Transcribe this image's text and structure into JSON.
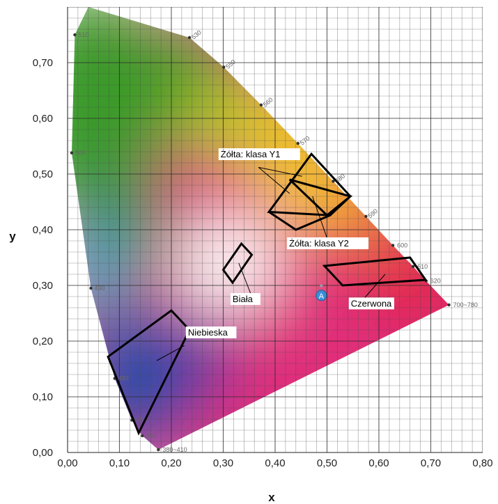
{
  "chart_data": {
    "type": "scatter",
    "xlabel": "x",
    "ylabel": "y",
    "xlim": [
      0,
      0.8
    ],
    "ylim": [
      0,
      0.8
    ],
    "x_ticks": [
      "0,00",
      "0,10",
      "0,20",
      "0,30",
      "0,40",
      "0,50",
      "0,60",
      "0,70",
      "0,80"
    ],
    "y_ticks": [
      "0,00",
      "0,10",
      "0,20",
      "0,30",
      "0,40",
      "0,50",
      "0,60",
      "0,70"
    ],
    "grid": true,
    "spectral_locus": [
      {
        "wl": "380~410",
        "x": 0.175,
        "y": 0.005
      },
      {
        "wl": "460",
        "x": 0.144,
        "y": 0.03
      },
      {
        "wl": "470",
        "x": 0.124,
        "y": 0.058
      },
      {
        "wl": "480",
        "x": 0.091,
        "y": 0.133
      },
      {
        "wl": "490",
        "x": 0.045,
        "y": 0.295
      },
      {
        "wl": "500",
        "x": 0.008,
        "y": 0.538
      },
      {
        "wl": "510",
        "x": 0.014,
        "y": 0.75
      },
      {
        "wl": "",
        "x": 0.04,
        "y": 0.8
      },
      {
        "wl": "530",
        "x": 0.235,
        "y": 0.745
      },
      {
        "wl": "550",
        "x": 0.301,
        "y": 0.692
      },
      {
        "wl": "560",
        "x": 0.373,
        "y": 0.624
      },
      {
        "wl": "570",
        "x": 0.444,
        "y": 0.555
      },
      {
        "wl": "580",
        "x": 0.512,
        "y": 0.487
      },
      {
        "wl": "590",
        "x": 0.575,
        "y": 0.424
      },
      {
        "wl": "600",
        "x": 0.627,
        "y": 0.372
      },
      {
        "wl": "610",
        "x": 0.666,
        "y": 0.334
      },
      {
        "wl": "620",
        "x": 0.691,
        "y": 0.308
      },
      {
        "wl": "700~780",
        "x": 0.735,
        "y": 0.265
      }
    ],
    "regions": [
      {
        "label": "Żółta: klasa Y1",
        "points": [
          [
            0.388,
            0.432
          ],
          [
            0.47,
            0.536
          ],
          [
            0.545,
            0.46
          ],
          [
            0.506,
            0.426
          ]
        ]
      },
      {
        "label": "Żółta: klasa Y1",
        "points": [
          [
            0.388,
            0.432
          ],
          [
            0.44,
            0.4
          ],
          [
            0.506,
            0.426
          ]
        ]
      },
      {
        "label": "Żółta: klasa Y2",
        "points": [
          [
            0.428,
            0.49
          ],
          [
            0.545,
            0.46
          ],
          [
            0.5,
            0.426
          ]
        ]
      },
      {
        "label": "Biała",
        "points": [
          [
            0.3,
            0.328
          ],
          [
            0.335,
            0.375
          ],
          [
            0.355,
            0.355
          ],
          [
            0.318,
            0.305
          ]
        ]
      },
      {
        "label": "Czerwona",
        "points": [
          [
            0.495,
            0.335
          ],
          [
            0.66,
            0.35
          ],
          [
            0.69,
            0.31
          ],
          [
            0.53,
            0.3
          ]
        ]
      },
      {
        "label": "Niebieska",
        "points": [
          [
            0.078,
            0.172
          ],
          [
            0.2,
            0.255
          ],
          [
            0.235,
            0.22
          ],
          [
            0.137,
            0.035
          ]
        ]
      }
    ],
    "annotations": [
      {
        "text": "Żółta: klasa Y1",
        "x": 0.295,
        "y": 0.53
      },
      {
        "text": "Żółta: klasa Y2",
        "x": 0.427,
        "y": 0.37
      },
      {
        "text": "Biała",
        "x": 0.318,
        "y": 0.27
      },
      {
        "text": "Czerwona",
        "x": 0.546,
        "y": 0.262
      },
      {
        "text": "Niebieska",
        "x": 0.232,
        "y": 0.21
      }
    ],
    "marker": {
      "label": "A",
      "x": 0.489,
      "y": 0.282,
      "color": "#3a8fd8"
    }
  },
  "colors": {
    "green": "#3a9a2a",
    "yellow": "#f3c416",
    "orange": "#ee7a1f",
    "red": "#e2222a",
    "magenta": "#e02d7a",
    "blue": "#1b4fa8",
    "cyan": "#2aa7c4",
    "white": "#ffffff"
  }
}
